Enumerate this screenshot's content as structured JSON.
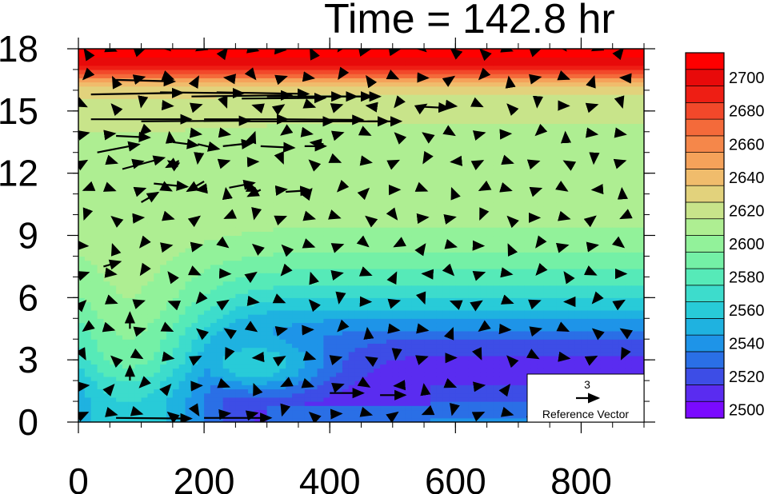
{
  "chart_data": {
    "type": "heatmap",
    "title": "Time = 142.8 hr",
    "xlabel": "",
    "ylabel": "",
    "xlim": [
      0,
      900
    ],
    "ylim": [
      0,
      18
    ],
    "x_ticks": [
      "0",
      "200",
      "400",
      "600",
      "800"
    ],
    "x_tick_values": [
      0,
      200,
      400,
      600,
      800
    ],
    "y_ticks": [
      "0",
      "3",
      "6",
      "9",
      "12",
      "15",
      "18"
    ],
    "y_tick_values": [
      0,
      3,
      6,
      9,
      12,
      15,
      18
    ],
    "colorbar": {
      "levels": [
        2490,
        2500,
        2510,
        2520,
        2530,
        2540,
        2550,
        2560,
        2570,
        2580,
        2590,
        2600,
        2610,
        2620,
        2630,
        2640,
        2650,
        2660,
        2670,
        2680,
        2690,
        2700,
        2710
      ],
      "labels": [
        "2500",
        "2520",
        "2540",
        "2560",
        "2580",
        "2600",
        "2620",
        "2640",
        "2660",
        "2680",
        "2700"
      ],
      "label_values": [
        2500,
        2520,
        2540,
        2560,
        2580,
        2600,
        2620,
        2640,
        2660,
        2680,
        2700
      ],
      "colors": [
        "#7a0aff",
        "#5a2cf0",
        "#3d4de6",
        "#2a6fe6",
        "#1e94e8",
        "#1fb2e0",
        "#28cbd8",
        "#3ddccc",
        "#56eab8",
        "#74f0a6",
        "#92f29a",
        "#aeee92",
        "#c8e48a",
        "#e2d27c",
        "#f0bc6c",
        "#f5a25a",
        "#f5874a",
        "#f46a3a",
        "#f2482a",
        "#ee1e14",
        "#e80a0a",
        "#ff0000"
      ]
    },
    "profile": {
      "z": [
        0,
        1,
        2,
        3,
        4,
        5,
        6,
        7,
        8,
        9,
        10,
        11,
        12,
        13,
        14,
        15,
        16,
        16.5,
        17,
        17.5,
        18
      ],
      "far_field": [
        2502,
        2502,
        2504,
        2508,
        2520,
        2540,
        2560,
        2575,
        2588,
        2598,
        2603,
        2606,
        2607,
        2608,
        2609,
        2612,
        2622,
        2648,
        2680,
        2698,
        2704
      ],
      "near_field": [
        2560,
        2560,
        2570,
        2585,
        2590,
        2595,
        2600,
        2602,
        2604,
        2606,
        2607,
        2608,
        2608,
        2609,
        2610,
        2614,
        2625,
        2650,
        2680,
        2698,
        2704
      ]
    },
    "reference_vector": {
      "value": "3",
      "label": "Reference Vector"
    },
    "vectors": [
      {
        "x": 20,
        "z": 15.8,
        "u": 22,
        "w": 0.05
      },
      {
        "x": 60,
        "z": 16.5,
        "u": 14,
        "w": -0.05
      },
      {
        "x": 130,
        "z": 15.9,
        "u": 20,
        "w": -0.03
      },
      {
        "x": 180,
        "z": 15.7,
        "u": 24,
        "w": 0.04
      },
      {
        "x": 220,
        "z": 15.9,
        "u": 22,
        "w": -0.05
      },
      {
        "x": 260,
        "z": 15.6,
        "u": 20,
        "w": 0.02
      },
      {
        "x": 300,
        "z": 15.7,
        "u": 18,
        "w": 0.0
      },
      {
        "x": 350,
        "z": 15.7,
        "u": 14,
        "w": 0.0
      },
      {
        "x": 400,
        "z": 15.7,
        "u": 10,
        "w": 0.0
      },
      {
        "x": 440,
        "z": 15.7,
        "u": 6,
        "w": 0.0
      },
      {
        "x": 20,
        "z": 14.6,
        "u": 24,
        "w": 0.0
      },
      {
        "x": 100,
        "z": 14.5,
        "u": 26,
        "w": 0.02
      },
      {
        "x": 200,
        "z": 14.6,
        "u": 20,
        "w": 0.0
      },
      {
        "x": 260,
        "z": 14.5,
        "u": 22,
        "w": 0.0
      },
      {
        "x": 320,
        "z": 14.6,
        "u": 20,
        "w": -0.02
      },
      {
        "x": 400,
        "z": 14.5,
        "u": 14,
        "w": 0.0
      },
      {
        "x": 460,
        "z": 14.5,
        "u": 8,
        "w": 0.0
      },
      {
        "x": 550,
        "z": 15.2,
        "u": 6,
        "w": -0.04
      },
      {
        "x": 30,
        "z": 13.0,
        "u": 10,
        "w": 0.25
      },
      {
        "x": 70,
        "z": 12.2,
        "u": 10,
        "w": 0.35
      },
      {
        "x": 60,
        "z": 13.8,
        "u": 8,
        "w": -0.05
      },
      {
        "x": 150,
        "z": 13.5,
        "u": 6,
        "w": -0.1
      },
      {
        "x": 190,
        "z": 13.4,
        "u": 5,
        "w": -0.15
      },
      {
        "x": 230,
        "z": 13.3,
        "u": 7,
        "w": 0.1
      },
      {
        "x": 290,
        "z": 13.3,
        "u": 8,
        "w": -0.05
      },
      {
        "x": 360,
        "z": 13.3,
        "u": 5,
        "w": 0.0
      },
      {
        "x": 390,
        "z": 13.4,
        "u": -3,
        "w": 0.05
      },
      {
        "x": 100,
        "z": 10.6,
        "u": 4,
        "w": 0.3
      },
      {
        "x": 120,
        "z": 11.5,
        "u": 8,
        "w": -0.1
      },
      {
        "x": 160,
        "z": 12.6,
        "u": -3,
        "w": -0.2
      },
      {
        "x": 200,
        "z": 11.6,
        "u": -4,
        "w": -0.3
      },
      {
        "x": 240,
        "z": 11.3,
        "u": 6,
        "w": 0.15
      },
      {
        "x": 290,
        "z": 11.2,
        "u": -3,
        "w": -0.2
      },
      {
        "x": 330,
        "z": 11.1,
        "u": 6,
        "w": 0.05
      },
      {
        "x": 82,
        "z": 4.5,
        "u": 0,
        "w": 0.5
      },
      {
        "x": 82,
        "z": 2.0,
        "u": 0,
        "w": 0.45
      },
      {
        "x": 40,
        "z": 7.5,
        "u": 4,
        "w": 0.15
      },
      {
        "x": 60,
        "z": 0.2,
        "u": 18,
        "w": -0.02
      },
      {
        "x": 200,
        "z": 0.2,
        "u": 16,
        "w": 0.0
      },
      {
        "x": 400,
        "z": 1.4,
        "u": 8,
        "w": 0.0
      },
      {
        "x": 480,
        "z": 1.3,
        "u": 6,
        "w": 0.0
      }
    ]
  }
}
